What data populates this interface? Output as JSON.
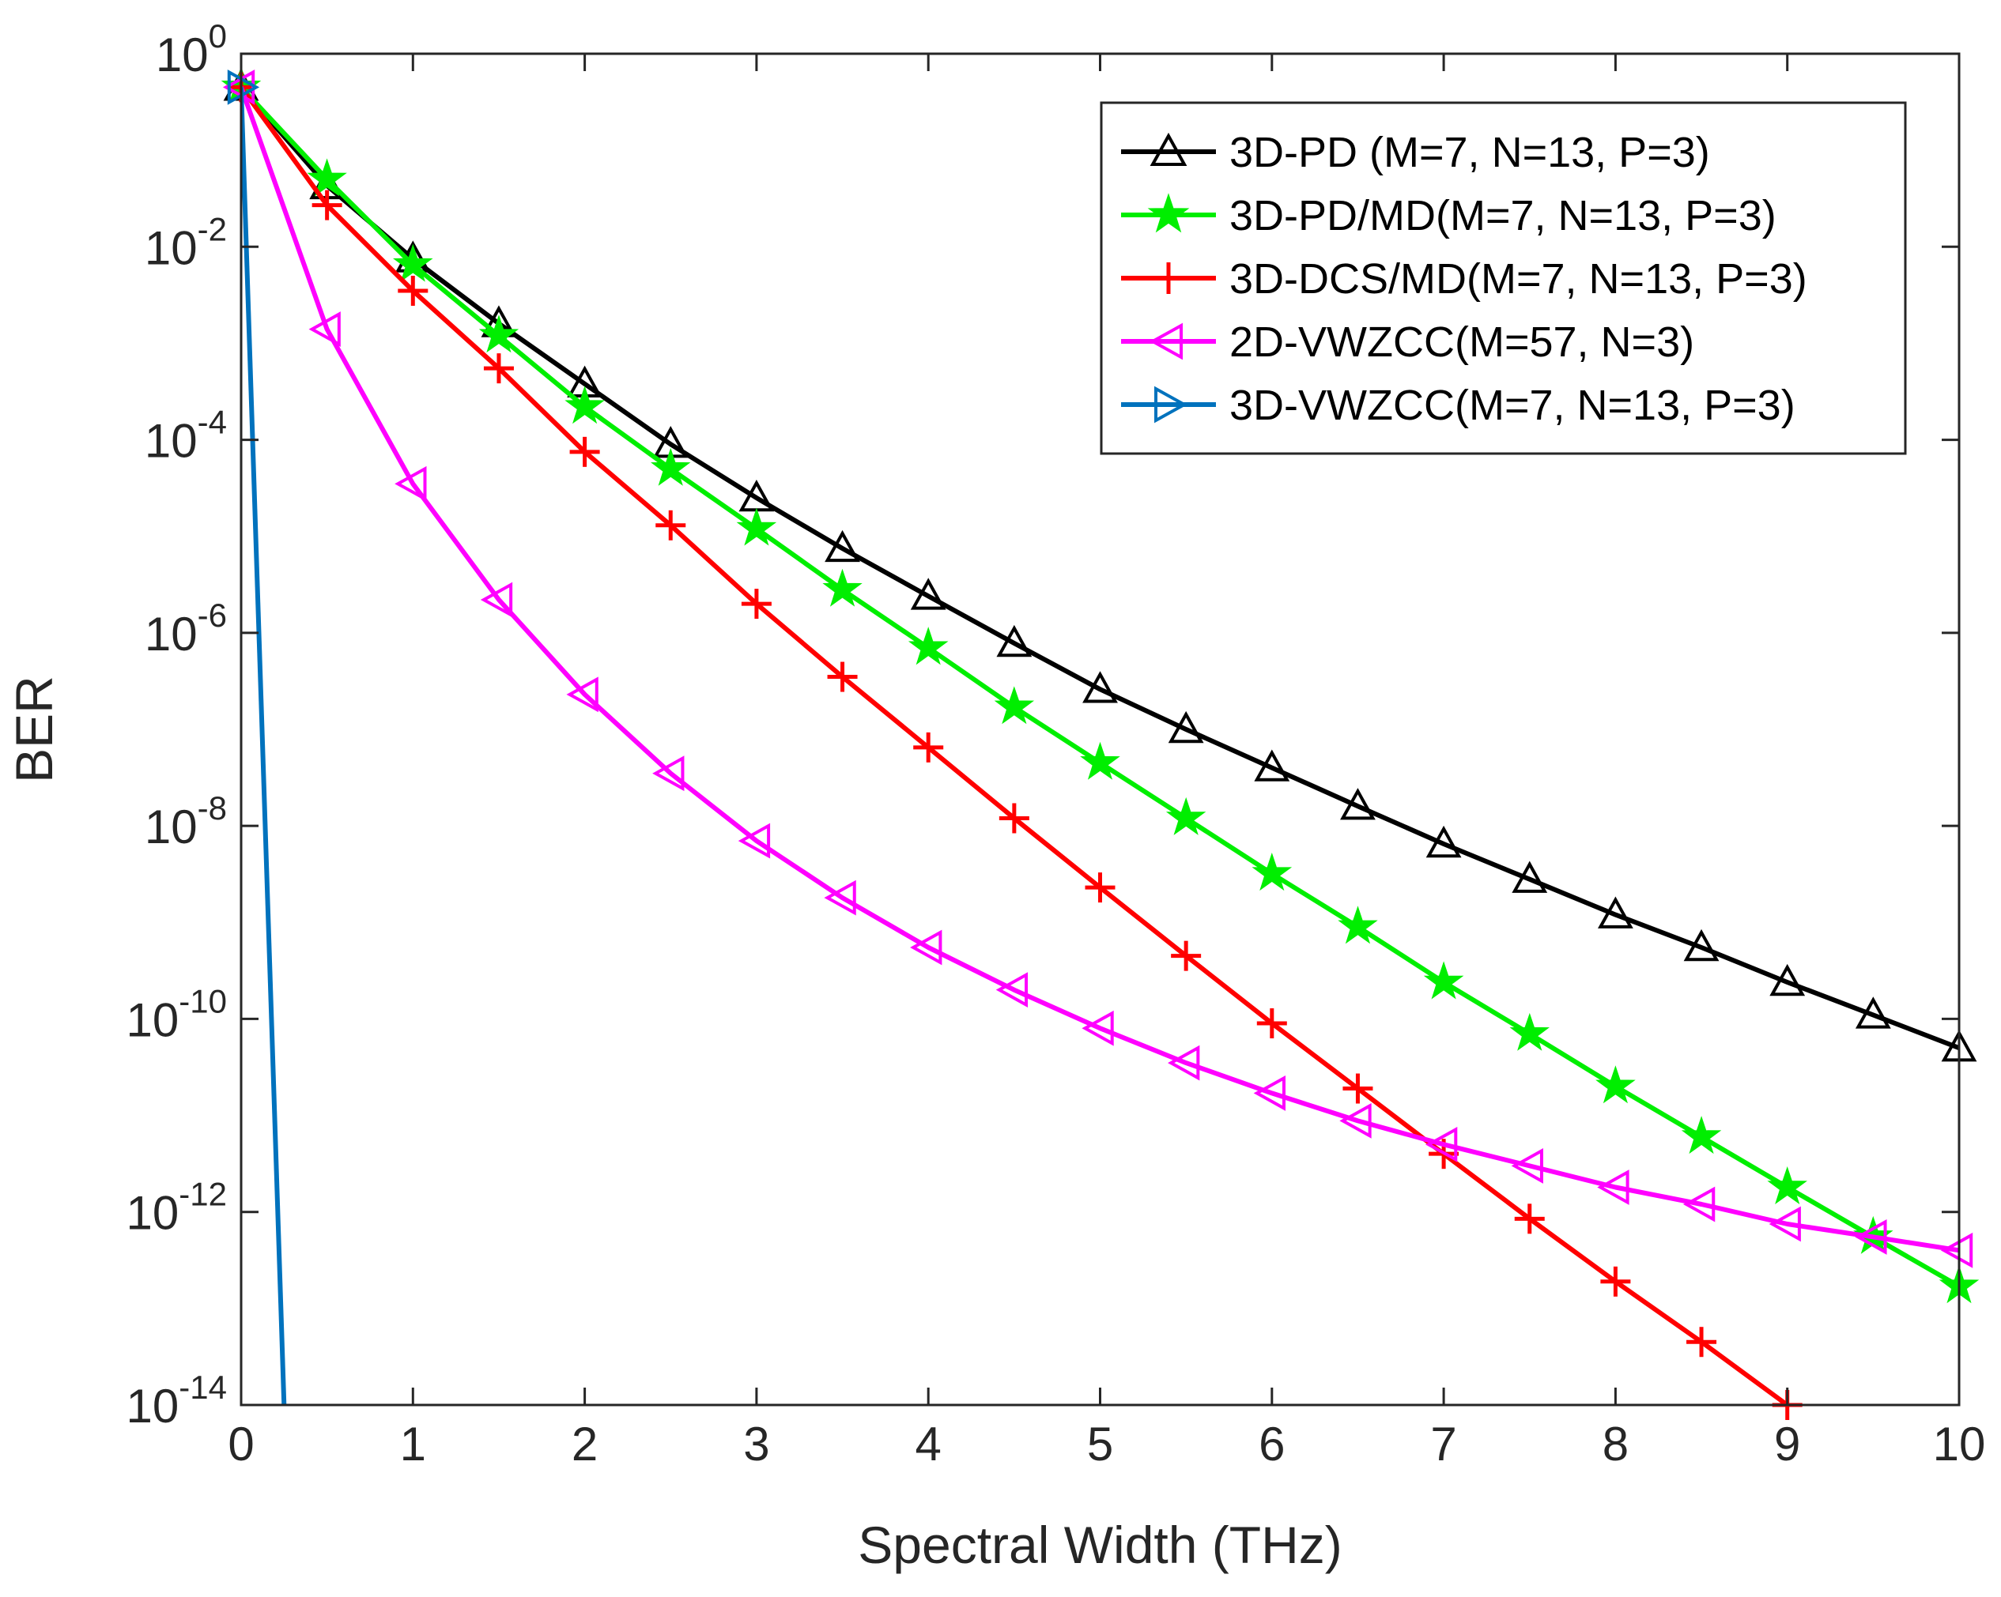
{
  "chart_data": {
    "type": "line",
    "title": "",
    "xlabel": "Spectral Width (THz)",
    "ylabel": "BER",
    "x_scale": "linear",
    "y_scale": "log",
    "xlim": [
      0,
      10
    ],
    "ylim": [
      1e-14,
      1
    ],
    "x_ticks": [
      0,
      1,
      2,
      3,
      4,
      5,
      6,
      7,
      8,
      9,
      10
    ],
    "x_tick_labels": [
      "0",
      "1",
      "2",
      "3",
      "4",
      "5",
      "6",
      "7",
      "8",
      "9",
      "10"
    ],
    "y_ticks": [
      {
        "base": "10",
        "exp": "0",
        "value": 1
      },
      {
        "base": "10",
        "exp": "-2",
        "value": 0.01
      },
      {
        "base": "10",
        "exp": "-4",
        "value": 0.0001
      },
      {
        "base": "10",
        "exp": "-6",
        "value": 1e-06
      },
      {
        "base": "10",
        "exp": "-8",
        "value": 1e-08
      },
      {
        "base": "10",
        "exp": "-10",
        "value": 1e-10
      },
      {
        "base": "10",
        "exp": "-12",
        "value": 1e-12
      },
      {
        "base": "10",
        "exp": "-14",
        "value": 1e-14
      }
    ],
    "grid": false,
    "legend_position": "top-right",
    "series": [
      {
        "name": "3D-PD (M=7, N=13, P=3)",
        "color": "#000000",
        "marker": "triangle-up",
        "x": [
          0,
          0.5,
          1,
          1.5,
          2,
          2.5,
          3,
          3.5,
          4,
          4.5,
          5,
          5.5,
          6,
          6.5,
          7,
          7.5,
          8,
          8.5,
          9,
          9.5,
          10
        ],
        "y": [
          0.45,
          0.043,
          0.0075,
          0.0016,
          0.00038,
          9e-05,
          2.5e-05,
          7.5e-06,
          2.4e-06,
          7.8e-07,
          2.6e-07,
          1e-07,
          4e-08,
          1.6e-08,
          6.5e-09,
          2.8e-09,
          1.2e-09,
          5.5e-10,
          2.4e-10,
          1.1e-10,
          5e-11
        ]
      },
      {
        "name": "3D-PD/MD(M=7, N=13, P=3)",
        "color": "#00ee00",
        "marker": "star",
        "x": [
          0,
          0.5,
          1,
          1.5,
          2,
          2.5,
          3,
          3.5,
          4,
          4.5,
          5,
          5.5,
          6,
          6.5,
          7,
          7.5,
          8,
          8.5,
          9,
          9.5,
          10
        ],
        "y": [
          0.45,
          0.05,
          0.0065,
          0.0012,
          0.00022,
          5e-05,
          1.2e-05,
          2.8e-06,
          7e-07,
          1.7e-07,
          4.5e-08,
          1.2e-08,
          3.2e-09,
          9e-10,
          2.4e-10,
          7e-11,
          2e-11,
          6e-12,
          1.8e-12,
          5.5e-13,
          1.7e-13
        ]
      },
      {
        "name": "3D-DCS/MD(M=7, N=13, P=3)",
        "color": "#ff0000",
        "marker": "plus",
        "x": [
          0,
          0.5,
          1,
          1.5,
          2,
          2.5,
          3,
          3.5,
          4,
          4.5,
          5,
          5.5,
          6,
          6.5,
          7,
          7.5,
          8,
          8.5,
          9
        ],
        "y": [
          0.45,
          0.027,
          0.0035,
          0.00055,
          7.5e-05,
          1.3e-05,
          2e-06,
          3.5e-07,
          6.5e-08,
          1.2e-08,
          2.3e-09,
          4.5e-10,
          9e-11,
          1.9e-11,
          4e-12,
          8.5e-13,
          1.9e-13,
          4.5e-14,
          1e-14
        ]
      },
      {
        "name": "2D-VWZCC(M=57, N=3)",
        "color": "#ff00ff",
        "marker": "triangle-left",
        "x": [
          0,
          0.5,
          1,
          1.5,
          2,
          2.5,
          3,
          3.5,
          4,
          4.5,
          5,
          5.5,
          6,
          6.5,
          7,
          7.5,
          8,
          8.5,
          9,
          9.5,
          10
        ],
        "y": [
          0.45,
          0.0014,
          3.5e-05,
          2.2e-06,
          2.3e-07,
          3.5e-08,
          7e-09,
          1.8e-09,
          5.5e-10,
          2e-10,
          8e-11,
          3.5e-11,
          1.7e-11,
          8.8e-12,
          5e-12,
          3e-12,
          1.8e-12,
          1.2e-12,
          7.5e-13,
          5.5e-13,
          4e-13
        ]
      },
      {
        "name": "3D-VWZCC(M=7, N=13, P=3)",
        "color": "#0072bd",
        "marker": "triangle-right",
        "x": [
          0,
          0.25
        ],
        "y": [
          0.45,
          1e-14
        ]
      }
    ]
  }
}
